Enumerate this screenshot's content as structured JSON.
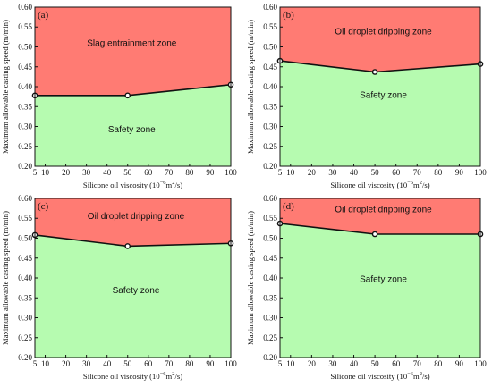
{
  "figure": {
    "colors": {
      "upper_zone": "#ff7b73",
      "lower_zone": "#b6fbb0",
      "boundary": "#111111",
      "axis": "#111111"
    }
  },
  "chart_data": [
    {
      "type": "area",
      "panel_label": "(a)",
      "xlabel": "Silicone oil viscosity (10^-6 m^2/s)",
      "xlabel_parts": {
        "main": "Silicone oil viscosity (10",
        "exp": "−6",
        "unit": "m",
        "unit_exp": "2",
        "tail": "/s)"
      },
      "ylabel": "Maximum allowable casting speed (m/min)",
      "xlim": [
        5,
        100
      ],
      "ylim": [
        0.2,
        0.6
      ],
      "x_ticks": [
        5,
        10,
        20,
        30,
        40,
        50,
        60,
        70,
        80,
        90,
        100
      ],
      "y_ticks": [
        "0.20",
        "0.25",
        "0.30",
        "0.35",
        "0.40",
        "0.45",
        "0.50",
        "0.55",
        "0.60"
      ],
      "x": [
        5,
        50,
        100
      ],
      "boundary": [
        0.378,
        0.378,
        0.405
      ],
      "upper_zone_label": "Slag entrainment zone",
      "lower_zone_label": "Safety zone",
      "upper_label_pos": [
        52,
        0.502
      ],
      "lower_label_pos": [
        52,
        0.285
      ]
    },
    {
      "type": "area",
      "panel_label": "(b)",
      "xlabel": "Silicone oil viscosity (10^-6 m^2/s)",
      "xlabel_parts": {
        "main": "Silicone oil viscosity (10",
        "exp": "−6",
        "unit": "m",
        "unit_exp": "2",
        "tail": "/s)"
      },
      "ylabel": "Maximum allowable casting speed (m/min)",
      "xlim": [
        5,
        100
      ],
      "ylim": [
        0.2,
        0.6
      ],
      "x_ticks": [
        5,
        10,
        20,
        30,
        40,
        50,
        60,
        70,
        80,
        90,
        100
      ],
      "y_ticks": [
        "0.20",
        "0.25",
        "0.30",
        "0.35",
        "0.40",
        "0.45",
        "0.50",
        "0.55",
        "0.60"
      ],
      "x": [
        5,
        50,
        100
      ],
      "boundary": [
        0.465,
        0.437,
        0.457
      ],
      "upper_zone_label": "Oil droplet dripping zone",
      "lower_zone_label": "Safety zone",
      "upper_label_pos": [
        54,
        0.532
      ],
      "lower_label_pos": [
        54,
        0.372
      ]
    },
    {
      "type": "area",
      "panel_label": "(c)",
      "xlabel": "Silicone oil viscosity (10^-6 m^2/s)",
      "xlabel_parts": {
        "main": "Silicone oil viscosity (10",
        "exp": "−6",
        "unit": "m",
        "unit_exp": "2",
        "tail": "/s)"
      },
      "ylabel": "Maximum allowable casting speed (m/min)",
      "xlim": [
        5,
        100
      ],
      "ylim": [
        0.2,
        0.6
      ],
      "x_ticks": [
        5,
        10,
        20,
        30,
        40,
        50,
        60,
        70,
        80,
        90,
        100
      ],
      "y_ticks": [
        "0.20",
        "0.25",
        "0.30",
        "0.35",
        "0.40",
        "0.45",
        "0.50",
        "0.55",
        "0.60"
      ],
      "x": [
        5,
        50,
        100
      ],
      "boundary": [
        0.508,
        0.48,
        0.487
      ],
      "upper_zone_label": "Oil droplet dripping zone",
      "lower_zone_label": "Safety zone",
      "upper_label_pos": [
        54,
        0.548
      ],
      "lower_label_pos": [
        54,
        0.362
      ]
    },
    {
      "type": "area",
      "panel_label": "(d)",
      "xlabel": "Silicone oil viscosity (10^-6 m^2/s)",
      "xlabel_parts": {
        "main": "Silicone oil viscosity (10",
        "exp": "−6",
        "unit": "m",
        "unit_exp": "2",
        "tail": "/s)"
      },
      "ylabel": "Maximum allowable casting speed (m/min)",
      "xlim": [
        5,
        100
      ],
      "ylim": [
        0.2,
        0.6
      ],
      "x_ticks": [
        5,
        10,
        20,
        30,
        40,
        50,
        60,
        70,
        80,
        90,
        100
      ],
      "y_ticks": [
        "0.20",
        "0.25",
        "0.30",
        "0.35",
        "0.40",
        "0.45",
        "0.50",
        "0.55",
        "0.60"
      ],
      "x": [
        5,
        50,
        100
      ],
      "boundary": [
        0.537,
        0.51,
        0.51
      ],
      "upper_zone_label": "Oil droplet dripping zone",
      "lower_zone_label": "Safety zone",
      "upper_label_pos": [
        54,
        0.565
      ],
      "lower_label_pos": [
        54,
        0.39
      ]
    }
  ]
}
